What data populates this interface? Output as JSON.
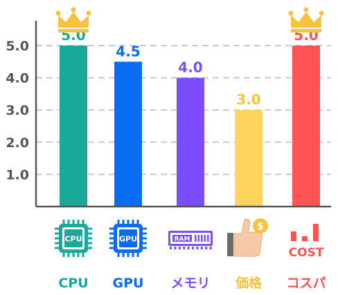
{
  "chart_data": {
    "type": "bar",
    "categories": [
      "CPU",
      "GPU",
      "メモリ",
      "価格",
      "コスパ"
    ],
    "values": [
      5.0,
      4.5,
      4.0,
      3.0,
      5.0
    ],
    "value_labels": [
      "5.0",
      "4.5",
      "4.0",
      "3.0",
      "5.0"
    ],
    "colors": [
      "#1aa89a",
      "#0a6cf2",
      "#7c4dff",
      "#ffd45c",
      "#ff5252"
    ],
    "label_colors": [
      "#1aa89a",
      "#0a6cf2",
      "#7c4dff",
      "#f7c23c",
      "#ff5252"
    ],
    "yticks": [
      "1.0",
      "2.0",
      "3.0",
      "4.0",
      "5.0"
    ],
    "ylim": [
      0,
      5.5
    ],
    "grid": true,
    "crowned": [
      true,
      false,
      false,
      false,
      true
    ],
    "crown_color": "#f7c23c",
    "icons": [
      "cpu-icon",
      "gpu-icon",
      "ram-icon",
      "price-icon",
      "cost-icon"
    ],
    "icon_texts": [
      "CPU",
      "GPU",
      "RAM",
      "$",
      "COST"
    ],
    "title": "",
    "xlabel": "",
    "ylabel": ""
  }
}
